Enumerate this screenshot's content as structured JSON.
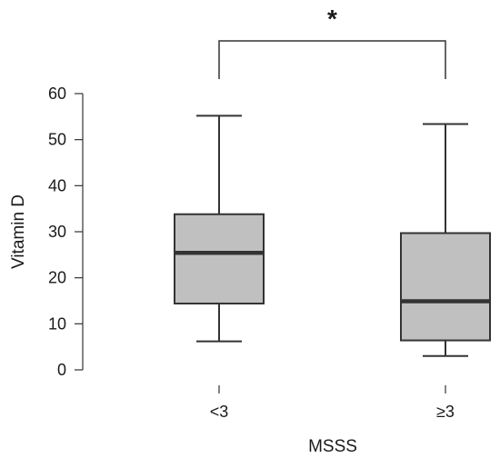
{
  "chart_data": {
    "type": "boxplot",
    "title": "",
    "xlabel": "MSSS",
    "ylabel": "Vitamin D",
    "categories": [
      "<3",
      "≥3"
    ],
    "boxes": [
      {
        "category": "<3",
        "whisker_low": 6.2,
        "q1": 14.4,
        "median": 25.4,
        "q3": 33.8,
        "whisker_high": 55.2
      },
      {
        "category": "≥3",
        "whisker_low": 3.0,
        "q1": 6.4,
        "median": 14.9,
        "q3": 29.7,
        "whisker_high": 53.4
      }
    ],
    "ylim": [
      0,
      60
    ],
    "yticks": [
      0,
      10,
      20,
      30,
      40,
      50,
      60
    ],
    "grid": false,
    "significance": {
      "between": [
        "<3",
        "≥3"
      ],
      "label": "*"
    },
    "colors": {
      "box_fill": "#c0c0c0",
      "stroke": "#333333"
    }
  }
}
